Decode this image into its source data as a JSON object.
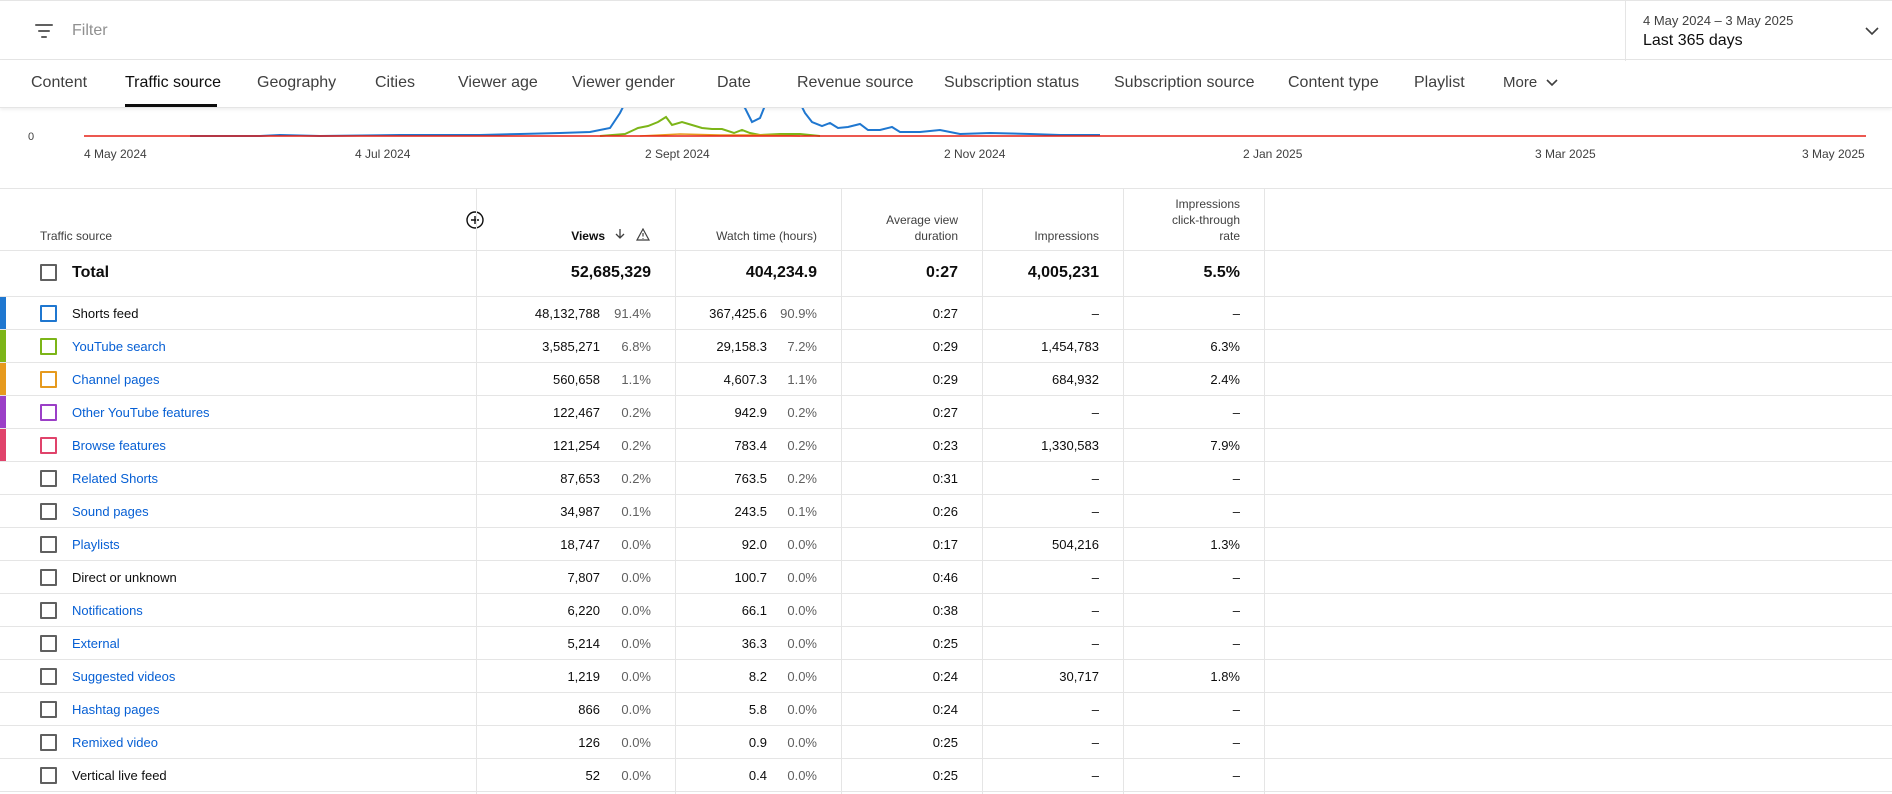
{
  "filter": {
    "placeholder": "Filter"
  },
  "date_range": {
    "range": "4 May 2024 – 3 May 2025",
    "label": "Last 365 days"
  },
  "tabs": [
    "Content",
    "Traffic source",
    "Geography",
    "Cities",
    "Viewer age",
    "Viewer gender",
    "Date",
    "Revenue source",
    "Subscription status",
    "Subscription source",
    "Content type",
    "Playlist",
    "More"
  ],
  "active_tab": "Traffic source",
  "chart_data": {
    "type": "line",
    "y_tick": "0",
    "x_ticks": [
      "4 May 2024",
      "4 Jul 2024",
      "2 Sept 2024",
      "2 Nov 2024",
      "2 Jan 2025",
      "3 Mar 2025",
      "3 May 2025"
    ],
    "series_colors": [
      "#1f77d0",
      "#7cb518",
      "#e69a1e",
      "#9b3fc7",
      "#e0436b"
    ],
    "baseline_color": "#e62117"
  },
  "table": {
    "headers": {
      "source": "Traffic source",
      "views": "Views",
      "watch_time": "Watch time (hours)",
      "avd_line1": "Average view",
      "avd_line2": "duration",
      "impressions": "Impressions",
      "ctr_line1": "Impressions",
      "ctr_line2": "click-through",
      "ctr_line3": "rate"
    },
    "total": {
      "label": "Total",
      "views": "52,685,329",
      "watch_time": "404,234.9",
      "avd": "0:27",
      "impressions": "4,005,231",
      "ctr": "5.5%"
    },
    "rows": [
      {
        "name": "Shorts feed",
        "link": false,
        "color": "#1f77d0",
        "views": "48,132,788",
        "views_pct": "91.4%",
        "watch": "367,425.6",
        "watch_pct": "90.9%",
        "avd": "0:27",
        "impressions": "–",
        "ctr": "–"
      },
      {
        "name": "YouTube search",
        "link": true,
        "color": "#7cb518",
        "views": "3,585,271",
        "views_pct": "6.8%",
        "watch": "29,158.3",
        "watch_pct": "7.2%",
        "avd": "0:29",
        "impressions": "1,454,783",
        "ctr": "6.3%"
      },
      {
        "name": "Channel pages",
        "link": true,
        "color": "#e69a1e",
        "views": "560,658",
        "views_pct": "1.1%",
        "watch": "4,607.3",
        "watch_pct": "1.1%",
        "avd": "0:29",
        "impressions": "684,932",
        "ctr": "2.4%"
      },
      {
        "name": "Other YouTube features",
        "link": true,
        "color": "#9b3fc7",
        "views": "122,467",
        "views_pct": "0.2%",
        "watch": "942.9",
        "watch_pct": "0.2%",
        "avd": "0:27",
        "impressions": "–",
        "ctr": "–"
      },
      {
        "name": "Browse features",
        "link": true,
        "color": "#e0436b",
        "views": "121,254",
        "views_pct": "0.2%",
        "watch": "783.4",
        "watch_pct": "0.2%",
        "avd": "0:23",
        "impressions": "1,330,583",
        "ctr": "7.9%"
      },
      {
        "name": "Related Shorts",
        "link": true,
        "color": "",
        "views": "87,653",
        "views_pct": "0.2%",
        "watch": "763.5",
        "watch_pct": "0.2%",
        "avd": "0:31",
        "impressions": "–",
        "ctr": "–"
      },
      {
        "name": "Sound pages",
        "link": true,
        "color": "",
        "views": "34,987",
        "views_pct": "0.1%",
        "watch": "243.5",
        "watch_pct": "0.1%",
        "avd": "0:26",
        "impressions": "–",
        "ctr": "–"
      },
      {
        "name": "Playlists",
        "link": true,
        "color": "",
        "views": "18,747",
        "views_pct": "0.0%",
        "watch": "92.0",
        "watch_pct": "0.0%",
        "avd": "0:17",
        "impressions": "504,216",
        "ctr": "1.3%"
      },
      {
        "name": "Direct or unknown",
        "link": false,
        "color": "",
        "views": "7,807",
        "views_pct": "0.0%",
        "watch": "100.7",
        "watch_pct": "0.0%",
        "avd": "0:46",
        "impressions": "–",
        "ctr": "–"
      },
      {
        "name": "Notifications",
        "link": true,
        "color": "",
        "views": "6,220",
        "views_pct": "0.0%",
        "watch": "66.1",
        "watch_pct": "0.0%",
        "avd": "0:38",
        "impressions": "–",
        "ctr": "–"
      },
      {
        "name": "External",
        "link": true,
        "color": "",
        "views": "5,214",
        "views_pct": "0.0%",
        "watch": "36.3",
        "watch_pct": "0.0%",
        "avd": "0:25",
        "impressions": "–",
        "ctr": "–"
      },
      {
        "name": "Suggested videos",
        "link": true,
        "color": "",
        "views": "1,219",
        "views_pct": "0.0%",
        "watch": "8.2",
        "watch_pct": "0.0%",
        "avd": "0:24",
        "impressions": "30,717",
        "ctr": "1.8%"
      },
      {
        "name": "Hashtag pages",
        "link": true,
        "color": "",
        "views": "866",
        "views_pct": "0.0%",
        "watch": "5.8",
        "watch_pct": "0.0%",
        "avd": "0:24",
        "impressions": "–",
        "ctr": "–"
      },
      {
        "name": "Remixed video",
        "link": true,
        "color": "",
        "views": "126",
        "views_pct": "0.0%",
        "watch": "0.9",
        "watch_pct": "0.0%",
        "avd": "0:25",
        "impressions": "–",
        "ctr": "–"
      },
      {
        "name": "Vertical live feed",
        "link": false,
        "color": "",
        "views": "52",
        "views_pct": "0.0%",
        "watch": "0.4",
        "watch_pct": "0.0%",
        "avd": "0:25",
        "impressions": "–",
        "ctr": "–"
      }
    ]
  }
}
